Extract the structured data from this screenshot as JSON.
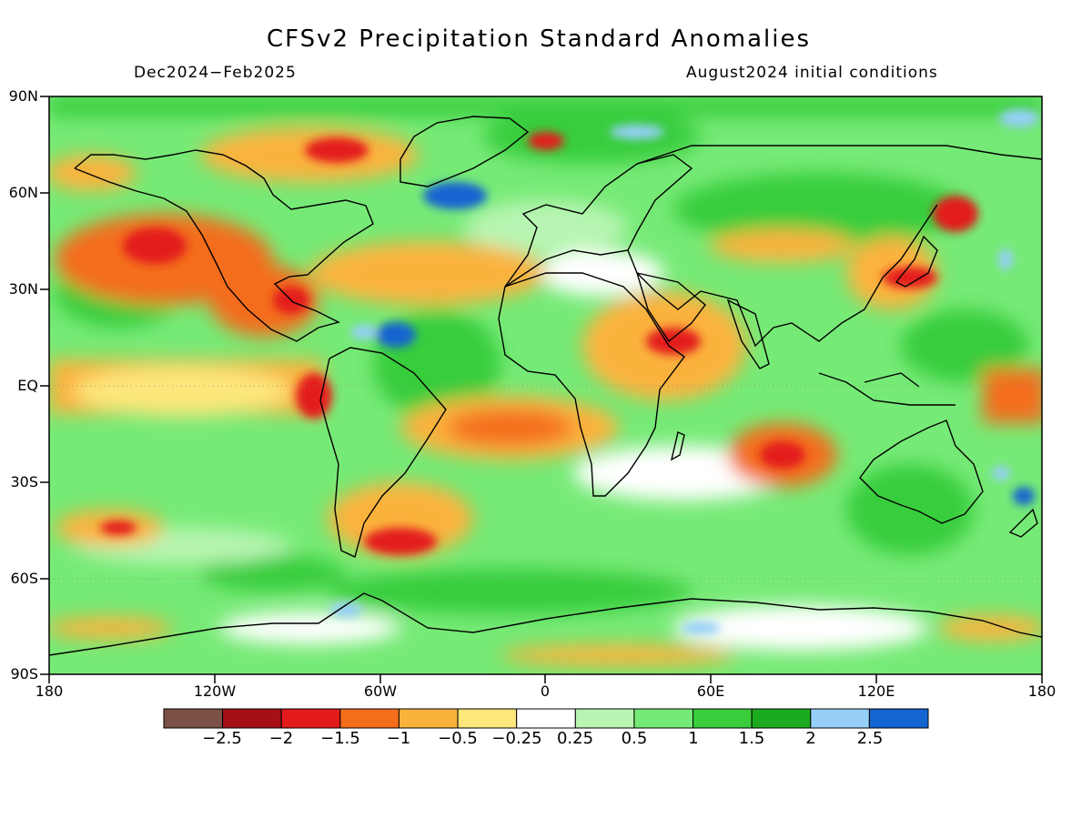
{
  "title": "CFSv2 Precipitation Standard Anomalies",
  "period": "Dec2024−Feb2025",
  "init": "August2024 initial conditions",
  "lat_labels": [
    "90N",
    "60N",
    "30N",
    "EQ",
    "30S",
    "60S",
    "90S"
  ],
  "lon_labels": [
    "180",
    "120W",
    "60W",
    "0",
    "60E",
    "120E",
    "180"
  ],
  "colorbar": {
    "colors": [
      "#7b5045",
      "#a50f15",
      "#e31a1c",
      "#f46d1a",
      "#fbb23c",
      "#fde67a",
      "#ffffff",
      "#b8f5b2",
      "#76ea76",
      "#39cd3c",
      "#1cab1e",
      "#95cff7",
      "#1464d2"
    ],
    "labels": [
      "−2.5",
      "−2",
      "−1.5",
      "−1",
      "−0.5",
      "−0.25",
      "0.25",
      "0.5",
      "1",
      "1.5",
      "2",
      "2.5"
    ]
  }
}
